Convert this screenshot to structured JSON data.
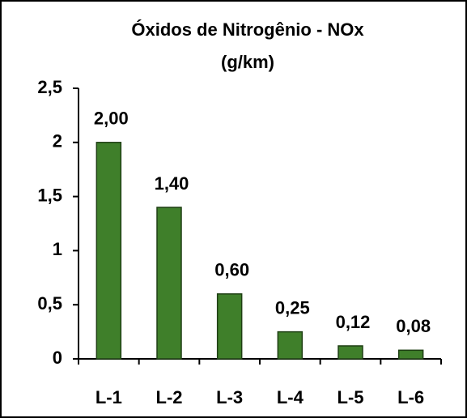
{
  "chart_data": {
    "type": "bar",
    "title": "Óxidos de Nitrogênio - NOx",
    "subtitle": "(g/km)",
    "categories": [
      "L-1",
      "L-2",
      "L-3",
      "L-4",
      "L-5",
      "L-6"
    ],
    "values": [
      2.0,
      1.4,
      0.6,
      0.25,
      0.12,
      0.08
    ],
    "value_labels": [
      "2,00",
      "1,40",
      "0,60",
      "0,25",
      "0,12",
      "0,08"
    ],
    "color": "#3f7f2a",
    "ylim": [
      0,
      2.5
    ],
    "yticks": [
      0,
      {
        "value": 0.5,
        "label": "0,5"
      },
      1,
      {
        "value": 1.5,
        "label": "1,5"
      },
      2,
      {
        "value": 2.5,
        "label": "2,5"
      }
    ],
    "grid": false
  }
}
